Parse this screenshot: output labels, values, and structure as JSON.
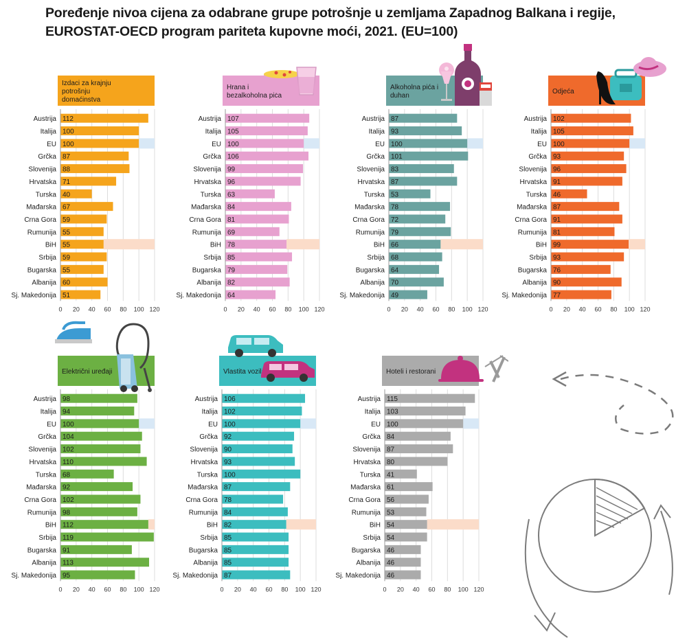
{
  "title": {
    "line1": "Poređenje nivoa cijena za odabrane grupe potrošnje u zemljama Zapadnog Balkana i regije,",
    "line2": "EUROSTAT-OECD program pariteta kupovne moći, 2021. (EU=100)"
  },
  "chart_data": [
    {
      "type": "bar",
      "orientation": "horizontal",
      "title": "Izdaci za krajnju potrošnju domaćinstva",
      "color": "#f5a41c",
      "icon": "",
      "categories": [
        "Austrija",
        "Italija",
        "EU",
        "Grčka",
        "Slovenija",
        "Hrvatska",
        "Turska",
        "Mađarska",
        "Crna Gora",
        "Rumunija",
        "BiH",
        "Srbija",
        "Bugarska",
        "Albanija",
        "Sj. Makedonija"
      ],
      "values": [
        112,
        100,
        100,
        87,
        88,
        71,
        40,
        67,
        59,
        55,
        55,
        59,
        55,
        60,
        51
      ],
      "xlim": [
        0,
        120
      ],
      "xticks": [
        0,
        20,
        40,
        60,
        80,
        100,
        120
      ]
    },
    {
      "type": "bar",
      "orientation": "horizontal",
      "title": "Hrana i bezalkoholna pića",
      "color": "#e7a1cf",
      "icon": "food-drink-icon",
      "categories": [
        "Austrija",
        "Italija",
        "EU",
        "Grčka",
        "Slovenija",
        "Hrvatska",
        "Turska",
        "Mađarska",
        "Crna Gora",
        "Rumunija",
        "BiH",
        "Srbija",
        "Bugarska",
        "Albanija",
        "Sj. Makedonija"
      ],
      "values": [
        107,
        105,
        100,
        106,
        99,
        96,
        63,
        84,
        81,
        69,
        78,
        85,
        79,
        82,
        64
      ],
      "xlim": [
        0,
        120
      ],
      "xticks": [
        0,
        20,
        40,
        60,
        80,
        100,
        120
      ]
    },
    {
      "type": "bar",
      "orientation": "horizontal",
      "title": "Alkoholna pića i duhan",
      "color": "#6ba3a0",
      "icon": "wine-bottle-icon",
      "categories": [
        "Austrija",
        "Italija",
        "EU",
        "Grčka",
        "Slovenija",
        "Hrvatska",
        "Turska",
        "Mađarska",
        "Crna Gora",
        "Rumunija",
        "BiH",
        "Srbija",
        "Bugarska",
        "Albanija",
        "Sj. Makedonija"
      ],
      "values": [
        87,
        93,
        100,
        101,
        83,
        87,
        53,
        78,
        72,
        79,
        66,
        68,
        64,
        70,
        49
      ],
      "xlim": [
        0,
        120
      ],
      "xticks": [
        0,
        20,
        40,
        60,
        80,
        100,
        120
      ]
    },
    {
      "type": "bar",
      "orientation": "horizontal",
      "title": "Odjeća",
      "color": "#ef6a2c",
      "icon": "clothing-icon",
      "categories": [
        "Austrija",
        "Italija",
        "EU",
        "Grčka",
        "Slovenija",
        "Hrvatska",
        "Turska",
        "Mađarska",
        "Crna Gora",
        "Rumunija",
        "BiH",
        "Srbija",
        "Bugarska",
        "Albanija",
        "Sj. Makedonija"
      ],
      "values": [
        102,
        105,
        100,
        93,
        96,
        91,
        46,
        87,
        91,
        81,
        99,
        93,
        76,
        90,
        77
      ],
      "xlim": [
        0,
        120
      ],
      "xticks": [
        0,
        20,
        40,
        60,
        80,
        100,
        120
      ]
    },
    {
      "type": "bar",
      "orientation": "horizontal",
      "title": "Električni uređaji",
      "color": "#6cb043",
      "icon": "appliances-icon",
      "categories": [
        "Austrija",
        "Italija",
        "EU",
        "Grčka",
        "Slovenija",
        "Hrvatska",
        "Turska",
        "Mađarska",
        "Crna Gora",
        "Rumunija",
        "BiH",
        "Srbija",
        "Bugarska",
        "Albanija",
        "Sj. Makedonija"
      ],
      "values": [
        98,
        94,
        100,
        104,
        102,
        110,
        68,
        92,
        102,
        98,
        112,
        119,
        91,
        113,
        95
      ],
      "xlim": [
        0,
        120
      ],
      "xticks": [
        0,
        20,
        40,
        60,
        80,
        100,
        120
      ]
    },
    {
      "type": "bar",
      "orientation": "horizontal",
      "title": "Vlastita vozila",
      "color": "#3cbdbf",
      "icon": "car-icon",
      "categories": [
        "Austrija",
        "Italija",
        "EU",
        "Grčka",
        "Slovenija",
        "Hrvatska",
        "Turska",
        "Mađarska",
        "Crna Gora",
        "Rumunija",
        "BiH",
        "Srbija",
        "Bugarska",
        "Albanija",
        "Sj. Makedonija"
      ],
      "values": [
        106,
        102,
        100,
        92,
        90,
        93,
        100,
        87,
        78,
        84,
        82,
        85,
        85,
        85,
        87
      ],
      "xlim": [
        0,
        120
      ],
      "xticks": [
        0,
        20,
        40,
        60,
        80,
        100,
        120
      ]
    },
    {
      "type": "bar",
      "orientation": "horizontal",
      "title": "Hoteli i restorani",
      "color": "#ababab",
      "icon": "restaurant-icon",
      "categories": [
        "Austrija",
        "Italija",
        "EU",
        "Grčka",
        "Slovenija",
        "Hrvatska",
        "Turska",
        "Mađarska",
        "Crna Gora",
        "Rumunija",
        "BiH",
        "Srbija",
        "Bugarska",
        "Albanija",
        "Sj. Makedonija"
      ],
      "values": [
        115,
        103,
        100,
        84,
        87,
        80,
        41,
        61,
        56,
        53,
        54,
        54,
        46,
        46,
        46
      ],
      "xlim": [
        0,
        120
      ],
      "xticks": [
        0,
        20,
        40,
        60,
        80,
        100,
        120
      ]
    }
  ],
  "highlight_colors": {
    "eu_row": "#d8e8f6",
    "bih_row": "#fbdcc9"
  },
  "decorations": [
    "dashed-arrow-icon",
    "pie-cycle-icon"
  ]
}
